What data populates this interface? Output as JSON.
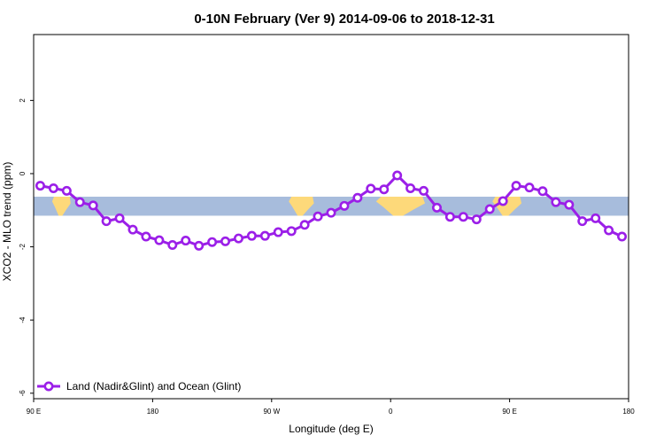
{
  "chart_data": {
    "type": "line",
    "title": "0-10N February (Ver 9)   2014-09-06 to 2018-12-31",
    "xlabel": "Longitude (deg E)",
    "ylabel": "XCO2 - MLO trend (ppm)",
    "x_ticks": [
      {
        "value": 90,
        "label": "90 E"
      },
      {
        "value": 180,
        "label": "180"
      },
      {
        "value": 270,
        "label": "90 W"
      },
      {
        "value": 360,
        "label": "0"
      },
      {
        "value": 450,
        "label": "90 E"
      },
      {
        "value": 540,
        "label": "180"
      }
    ],
    "y_ticks": [
      {
        "value": -6,
        "label": "-6"
      },
      {
        "value": -4,
        "label": "-4"
      },
      {
        "value": -2,
        "label": "-2"
      },
      {
        "value": 0,
        "label": "0"
      },
      {
        "value": 2,
        "label": "2"
      }
    ],
    "xlim": [
      90,
      540
    ],
    "ylim": [
      -6.15,
      3.8
    ],
    "band": {
      "ymin": -1.15,
      "ymax": -0.63,
      "ocean_color": "#a7bcdc",
      "land_color": "#fdd97a"
    },
    "land_segments": [
      [
        104,
        118
      ],
      [
        283,
        302
      ],
      [
        349,
        386
      ],
      [
        437,
        459
      ]
    ],
    "legend": {
      "label": "Land (Nadir&Glint) and Ocean (Glint)",
      "position": "bottom-left"
    },
    "series": [
      {
        "name": "Land (Nadir&Glint) and Ocean (Glint)",
        "color": "#9b1fe8",
        "x": [
          95,
          105,
          115,
          125,
          135,
          145,
          155,
          165,
          175,
          185,
          195,
          205,
          215,
          225,
          235,
          245,
          255,
          265,
          275,
          285,
          295,
          305,
          315,
          325,
          335,
          345,
          355,
          365,
          375,
          385,
          395,
          405,
          415,
          425,
          435,
          445,
          455,
          465,
          475,
          485,
          495,
          505,
          515,
          525,
          535
        ],
        "y": [
          -0.33,
          -0.4,
          -0.47,
          -0.78,
          -0.87,
          -1.3,
          -1.22,
          -1.53,
          -1.72,
          -1.82,
          -1.95,
          -1.83,
          -1.97,
          -1.87,
          -1.85,
          -1.77,
          -1.7,
          -1.7,
          -1.6,
          -1.57,
          -1.4,
          -1.17,
          -1.07,
          -0.88,
          -0.66,
          -0.41,
          -0.43,
          -0.05,
          -0.4,
          -0.47,
          -0.93,
          -1.18,
          -1.18,
          -1.25,
          -0.97,
          -0.75,
          -0.33,
          -0.38,
          -0.48,
          -0.78,
          -0.85,
          -1.3,
          -1.22,
          -1.55,
          -1.72
        ]
      }
    ]
  }
}
